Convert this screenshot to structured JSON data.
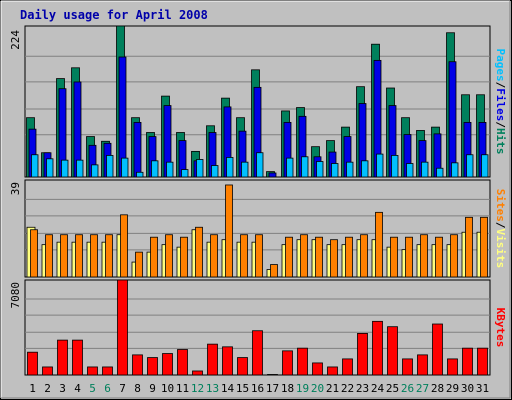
{
  "chart_data": {
    "type": "bar",
    "title": "Daily usage for April 2008",
    "colors": {
      "page_bg": "#c0c0c0",
      "plot_bg": "#c0c0c0",
      "grid": "#808080",
      "title": "#0000aa",
      "hits": "#00805c",
      "files": "#0000e6",
      "pages": "#00c0ff",
      "visits": "#ffff80",
      "sites": "#ff8000",
      "kbytes": "#ff0000",
      "weekday_label": "#000000",
      "weekend_label": "#00805c"
    },
    "days": [
      "1",
      "2",
      "3",
      "4",
      "5",
      "6",
      "7",
      "8",
      "9",
      "10",
      "11",
      "12",
      "13",
      "14",
      "15",
      "16",
      "17",
      "18",
      "19",
      "20",
      "21",
      "22",
      "23",
      "24",
      "25",
      "26",
      "27",
      "28",
      "29",
      "30",
      "31"
    ],
    "weekend_days": [
      "5",
      "6",
      "12",
      "13",
      "19",
      "20",
      "26",
      "27"
    ],
    "panels": [
      {
        "id": "traffic",
        "scale_label": "224",
        "ymax": 224,
        "axis_labels": [
          {
            "text": "Pages",
            "color": "#00c0ff"
          },
          {
            "text": "/",
            "color": "#000000"
          },
          {
            "text": "Files",
            "color": "#0000e6"
          },
          {
            "text": "/",
            "color": "#000000"
          },
          {
            "text": "Hits",
            "color": "#00805c"
          }
        ],
        "series": [
          {
            "name": "Hits",
            "values": [
              88,
              36,
              146,
              162,
              60,
              53,
              224,
              88,
              66,
              120,
              66,
              38,
              76,
              117,
              88,
              159,
              8,
              98,
              103,
              45,
              54,
              74,
              134,
              197,
              132,
              88,
              69,
              74,
              214,
              122,
              122
            ]
          },
          {
            "name": "Files",
            "values": [
              71,
              36,
              131,
              141,
              47,
              50,
              178,
              81,
              60,
              106,
              54,
              24,
              66,
              104,
              68,
              133,
              6,
              81,
              90,
              30,
              37,
              60,
              109,
              173,
              106,
              63,
              54,
              64,
              171,
              81,
              81
            ]
          },
          {
            "name": "Pages",
            "values": [
              33,
              27,
              25,
              25,
              18,
              32,
              28,
              7,
              24,
              22,
              11,
              26,
              17,
              29,
              22,
              36,
              0,
              28,
              30,
              23,
              20,
              22,
              24,
              34,
              32,
              20,
              22,
              13,
              21,
              33,
              33
            ]
          }
        ]
      },
      {
        "id": "visitors",
        "scale_label": "39",
        "ymax": 39,
        "axis_labels": [
          {
            "text": "Sites",
            "color": "#ff8000"
          },
          {
            "text": "/",
            "color": "#000000"
          },
          {
            "text": "Visits",
            "color": "#ffff80"
          }
        ],
        "series": [
          {
            "name": "Visits",
            "values": [
              20,
              13,
              14,
              14,
              14,
              14,
              17,
              6,
              10,
              13,
              12,
              19,
              14,
              15,
              14,
              14,
              3,
              13,
              15,
              15,
              13,
              13,
              15,
              15,
              12,
              11,
              13,
              13,
              13,
              18,
              18
            ]
          },
          {
            "name": "Sites",
            "values": [
              19,
              17,
              17,
              17,
              17,
              17,
              25,
              10,
              16,
              17,
              16,
              20,
              17,
              37,
              17,
              17,
              5,
              16,
              17,
              16,
              15,
              16,
              17,
              26,
              16,
              16,
              17,
              16,
              17,
              24,
              24
            ]
          }
        ]
      },
      {
        "id": "kbytes",
        "scale_label": "7080",
        "ymax": 7080,
        "axis_labels": [
          {
            "text": "KBytes",
            "color": "#ff0000"
          }
        ],
        "series": [
          {
            "name": "KBytes",
            "values": [
              1700,
              600,
              2600,
              2600,
              600,
              600,
              7080,
              1500,
              1300,
              1600,
              1900,
              300,
              2300,
              2100,
              1300,
              3300,
              40,
              1800,
              2000,
              900,
              600,
              1200,
              3100,
              4000,
              3600,
              1200,
              1500,
              3800,
              1200,
              2000,
              2000
            ]
          }
        ]
      }
    ]
  }
}
